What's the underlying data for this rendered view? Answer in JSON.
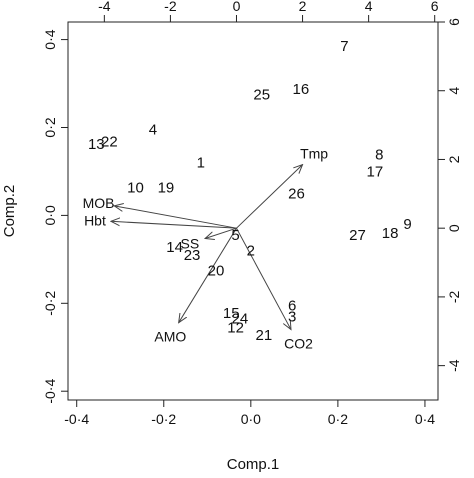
{
  "chart_data": {
    "type": "scatter",
    "subtype": "biplot",
    "xlabel": "Comp.1",
    "ylabel": "Comp.2",
    "xlim": [
      -0.42,
      0.43
    ],
    "ylim": [
      -0.42,
      0.44
    ],
    "x_ticks": [
      "-0·4",
      "-0·2",
      "0·0",
      "0·2",
      "0·4"
    ],
    "y_ticks": [
      "-0·4",
      "-0·2",
      "0·0",
      "0·2",
      "0·4"
    ],
    "top_axis": {
      "lim": [
        -5.1,
        6.1
      ],
      "ticks": [
        "-4",
        "-2",
        "0",
        "2",
        "4",
        "6"
      ]
    },
    "right_axis": {
      "lim": [
        -5.0,
        6.0
      ],
      "ticks": [
        "-4",
        "-2",
        "0",
        "2",
        "4",
        "6"
      ]
    },
    "grid": false,
    "dashed_origin_lines": false,
    "observations": [
      {
        "label": "1",
        "x": -0.115,
        "y": 0.12
      },
      {
        "label": "2",
        "x": 0.0,
        "y": -0.08
      },
      {
        "label": "3",
        "x": 0.095,
        "y": -0.23
      },
      {
        "label": "4",
        "x": -0.225,
        "y": 0.195
      },
      {
        "label": "5",
        "x": -0.035,
        "y": -0.045
      },
      {
        "label": "6",
        "x": 0.095,
        "y": -0.205
      },
      {
        "label": "7",
        "x": 0.215,
        "y": 0.385
      },
      {
        "label": "8",
        "x": 0.295,
        "y": 0.138
      },
      {
        "label": "9",
        "x": 0.36,
        "y": -0.02
      },
      {
        "label": "10",
        "x": -0.265,
        "y": 0.064
      },
      {
        "label": "12",
        "x": -0.035,
        "y": -0.255
      },
      {
        "label": "13",
        "x": -0.355,
        "y": 0.163
      },
      {
        "label": "14",
        "x": -0.175,
        "y": -0.072
      },
      {
        "label": "15",
        "x": -0.045,
        "y": -0.222
      },
      {
        "label": "16",
        "x": 0.115,
        "y": 0.288
      },
      {
        "label": "17",
        "x": 0.285,
        "y": 0.1
      },
      {
        "label": "18",
        "x": 0.32,
        "y": -0.04
      },
      {
        "label": "19",
        "x": -0.195,
        "y": 0.063
      },
      {
        "label": "20",
        "x": -0.08,
        "y": -0.125
      },
      {
        "label": "21",
        "x": 0.03,
        "y": -0.272
      },
      {
        "label": "22",
        "x": -0.325,
        "y": 0.168
      },
      {
        "label": "23",
        "x": -0.135,
        "y": -0.09
      },
      {
        "label": "24",
        "x": -0.025,
        "y": -0.235
      },
      {
        "label": "25",
        "x": 0.025,
        "y": 0.275
      },
      {
        "label": "26",
        "x": 0.105,
        "y": 0.05
      },
      {
        "label": "27",
        "x": 0.245,
        "y": -0.045
      }
    ],
    "loadings": [
      {
        "label": "Tmp",
        "x": 2.0,
        "y": 1.85
      },
      {
        "label": "MOB",
        "x": -3.7,
        "y": 0.65
      },
      {
        "label": "Hbt",
        "x": -3.8,
        "y": 0.2
      },
      {
        "label": "SS",
        "x": -0.95,
        "y": -0.3
      },
      {
        "label": "AMO",
        "x": -1.75,
        "y": -2.75
      },
      {
        "label": "CO2",
        "x": 1.65,
        "y": -2.95
      }
    ],
    "arrow_color": "#444444"
  }
}
